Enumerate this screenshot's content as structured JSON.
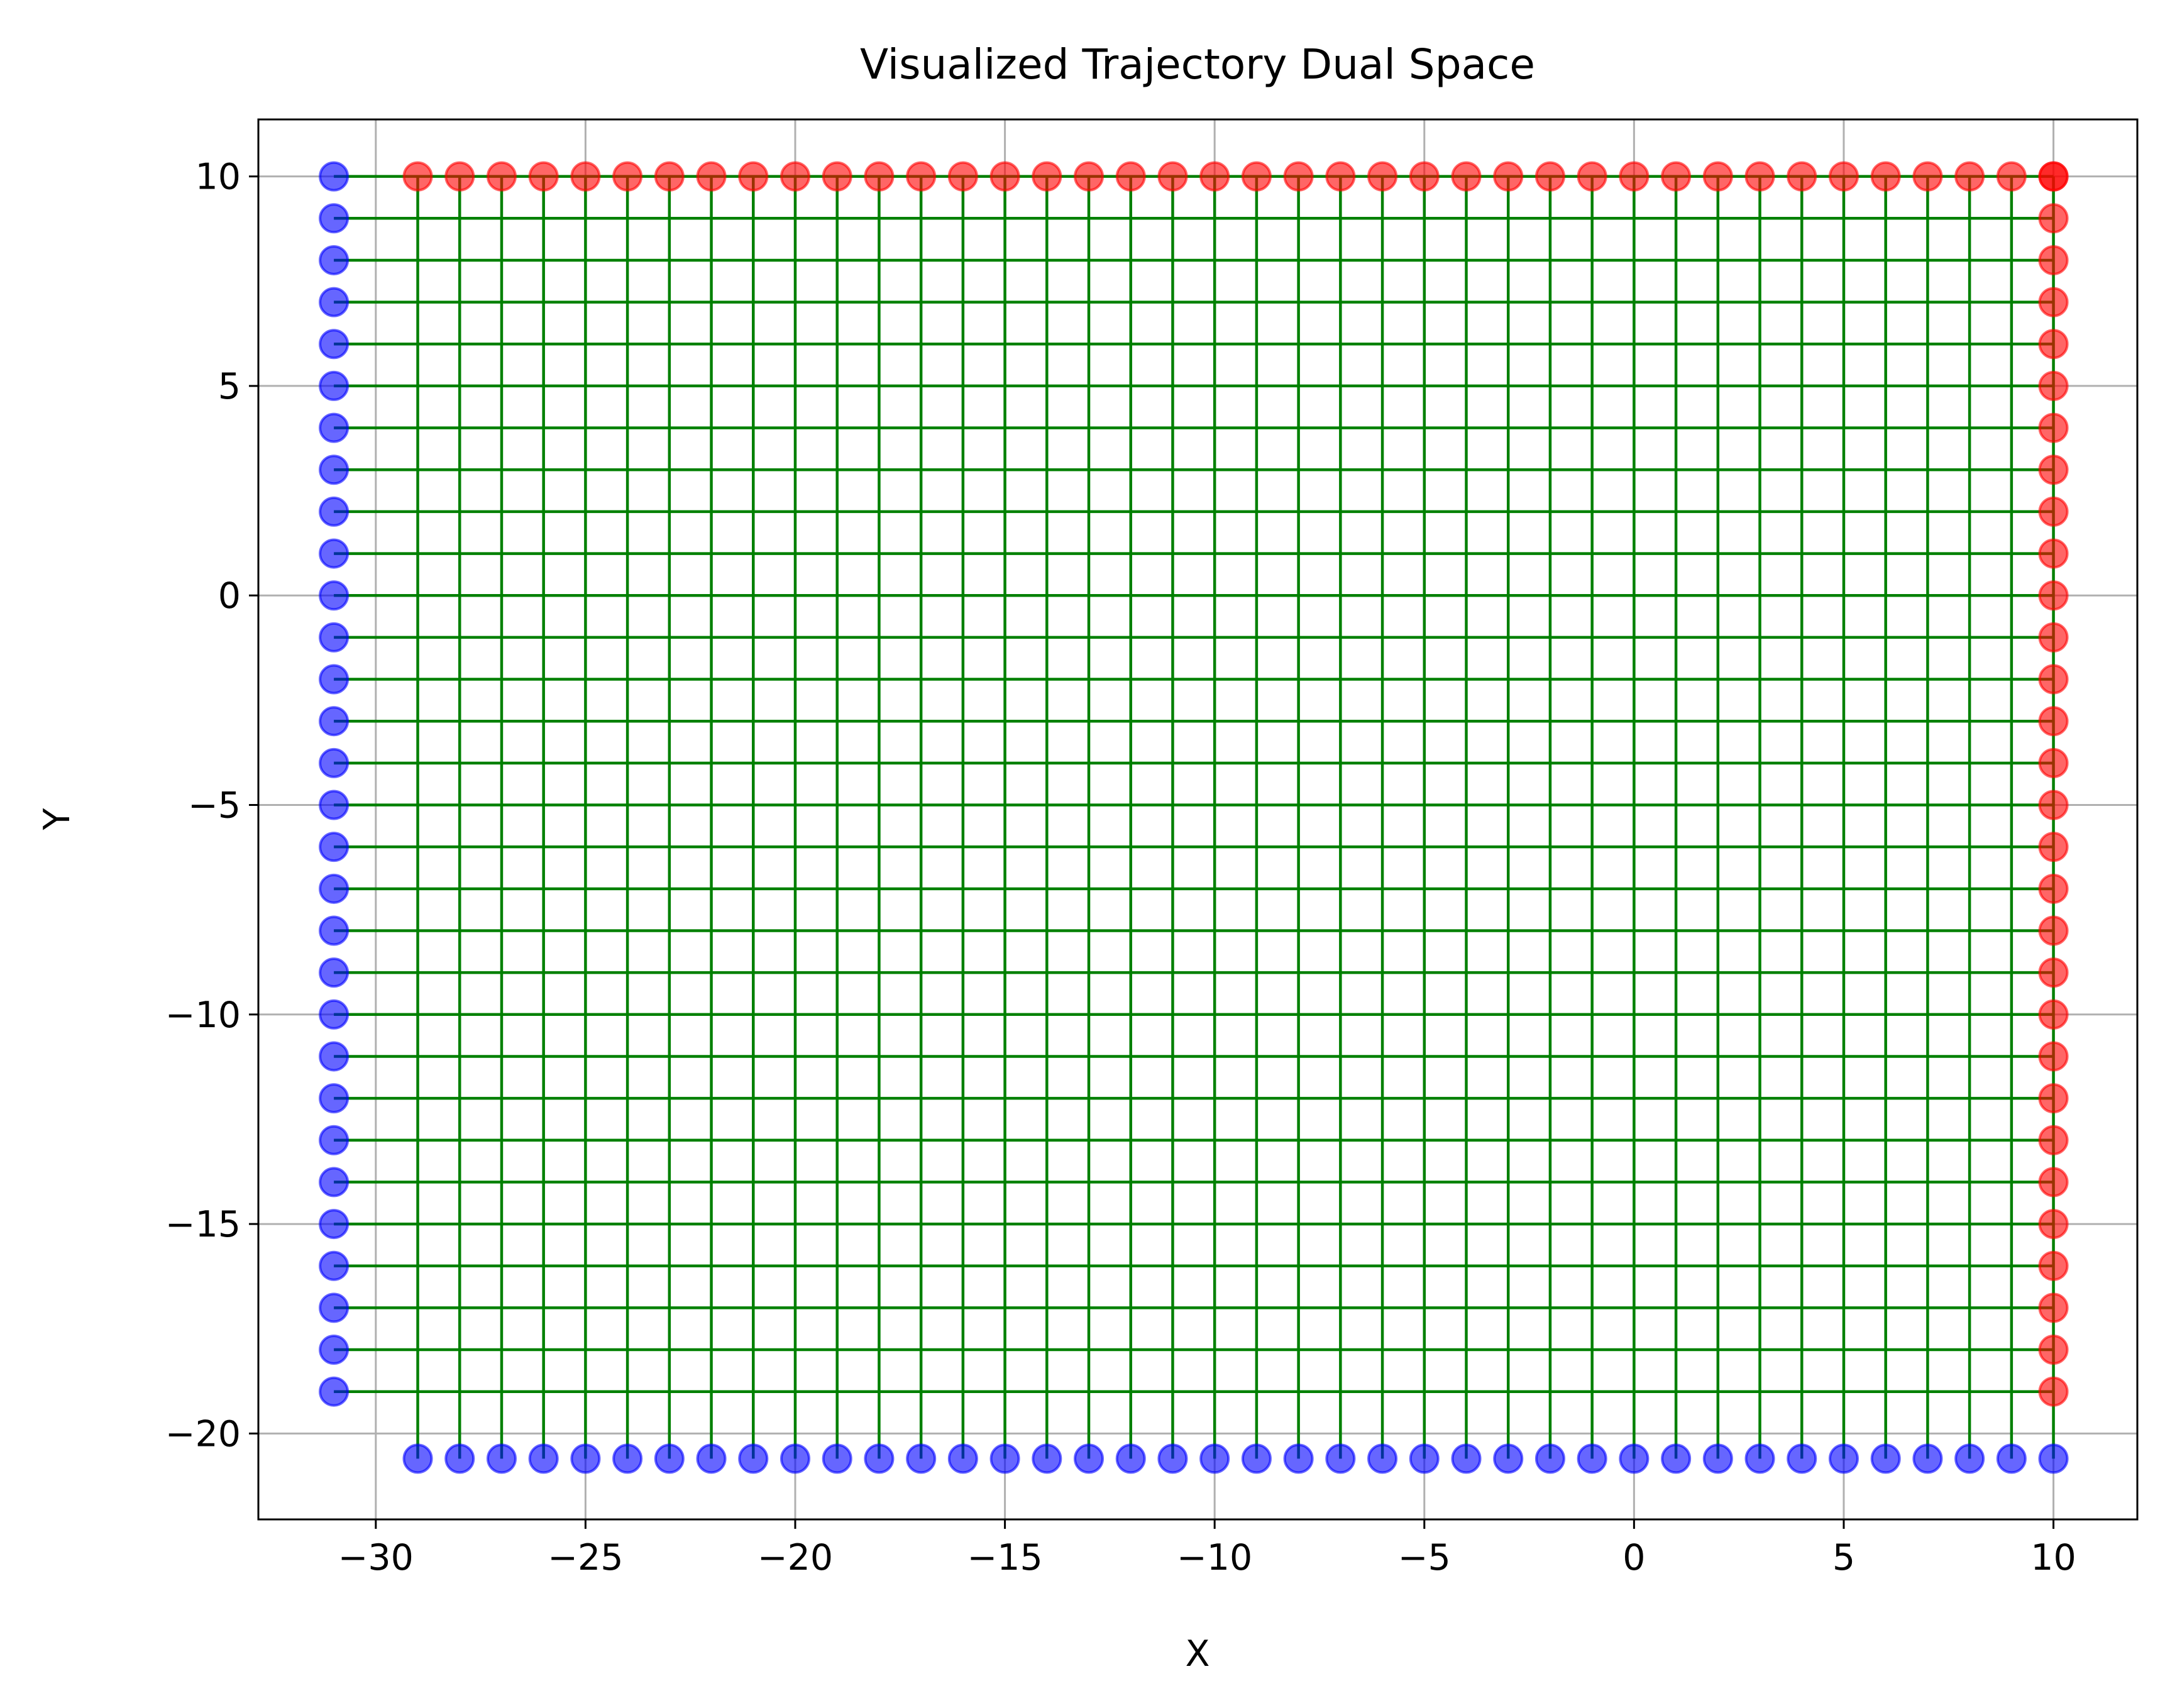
{
  "chart_data": {
    "type": "scatter",
    "title": "Visualized Trajectory Dual Space",
    "x_label": "X",
    "y_label": "Y",
    "xlim": [
      -32.8,
      12
    ],
    "ylim": [
      -22.05,
      11.36
    ],
    "xticks": [
      {
        "value": -30,
        "label": "−30"
      },
      {
        "value": -25,
        "label": "−25"
      },
      {
        "value": -20,
        "label": "−20"
      },
      {
        "value": -15,
        "label": "−15"
      },
      {
        "value": -10,
        "label": "−10"
      },
      {
        "value": -5,
        "label": "−5"
      },
      0,
      5,
      10
    ],
    "yticks": [
      {
        "value": -20,
        "label": "−20"
      },
      {
        "value": -15,
        "label": "−15"
      },
      {
        "value": -10,
        "label": "−10"
      },
      {
        "value": -5,
        "label": "−5"
      },
      0,
      5,
      10
    ],
    "grid": true,
    "line_color": "green",
    "series": [
      {
        "color": "blue",
        "x": [
          -31,
          -31,
          -31,
          -31,
          -31,
          -31,
          -31,
          -31,
          -31,
          -31,
          -31,
          -31,
          -31,
          -31,
          -31,
          -31,
          -31,
          -31,
          -31,
          -31,
          -31,
          -31,
          -31,
          -31,
          -31,
          -31,
          -31,
          -31,
          -31,
          -31,
          -29,
          -28,
          -27,
          -26,
          -25,
          -24,
          -23,
          -22,
          -21,
          -20,
          -19,
          -18,
          -17,
          -16,
          -15,
          -14,
          -13,
          -12,
          -11,
          -10,
          -9,
          -8,
          -7,
          -6,
          -5,
          -4,
          -3,
          -2,
          -1,
          0,
          1,
          2,
          3,
          4,
          5,
          6,
          7,
          8,
          9,
          10
        ],
        "values": [
          10,
          9,
          8,
          7,
          6,
          5,
          4,
          3,
          2,
          1,
          0,
          -1,
          -2,
          -3,
          -4,
          -5,
          -6,
          -7,
          -8,
          -9,
          -10,
          -11,
          -12,
          -13,
          -14,
          -15,
          -16,
          -17,
          -18,
          -19,
          -20.6,
          -20.6,
          -20.6,
          -20.6,
          -20.6,
          -20.6,
          -20.6,
          -20.6,
          -20.6,
          -20.6,
          -20.6,
          -20.6,
          -20.6,
          -20.6,
          -20.6,
          -20.6,
          -20.6,
          -20.6,
          -20.6,
          -20.6,
          -20.6,
          -20.6,
          -20.6,
          -20.6,
          -20.6,
          -20.6,
          -20.6,
          -20.6,
          -20.6,
          -20.6,
          -20.6,
          -20.6,
          -20.6,
          -20.6,
          -20.6,
          -20.6,
          -20.6,
          -20.6,
          -20.6,
          -20.6
        ]
      },
      {
        "color": "red",
        "x": [
          10,
          10,
          10,
          10,
          10,
          10,
          10,
          10,
          10,
          10,
          10,
          10,
          10,
          10,
          10,
          10,
          10,
          10,
          10,
          10,
          10,
          10,
          10,
          10,
          10,
          10,
          10,
          10,
          10,
          10,
          -29,
          -28,
          -27,
          -26,
          -25,
          -24,
          -23,
          -22,
          -21,
          -20,
          -19,
          -18,
          -17,
          -16,
          -15,
          -14,
          -13,
          -12,
          -11,
          -10,
          -9,
          -8,
          -7,
          -6,
          -5,
          -4,
          -3,
          -2,
          -1,
          0,
          1,
          2,
          3,
          4,
          5,
          6,
          7,
          8,
          9,
          10
        ],
        "values": [
          10,
          9,
          8,
          7,
          6,
          5,
          4,
          3,
          2,
          1,
          0,
          -1,
          -2,
          -3,
          -4,
          -5,
          -6,
          -7,
          -8,
          -9,
          -10,
          -11,
          -12,
          -13,
          -14,
          -15,
          -16,
          -17,
          -18,
          -19,
          10,
          10,
          10,
          10,
          10,
          10,
          10,
          10,
          10,
          10,
          10,
          10,
          10,
          10,
          10,
          10,
          10,
          10,
          10,
          10,
          10,
          10,
          10,
          10,
          10,
          10,
          10,
          10,
          10,
          10,
          10,
          10,
          10,
          10,
          10,
          10,
          10,
          10,
          10,
          10
        ]
      }
    ]
  }
}
